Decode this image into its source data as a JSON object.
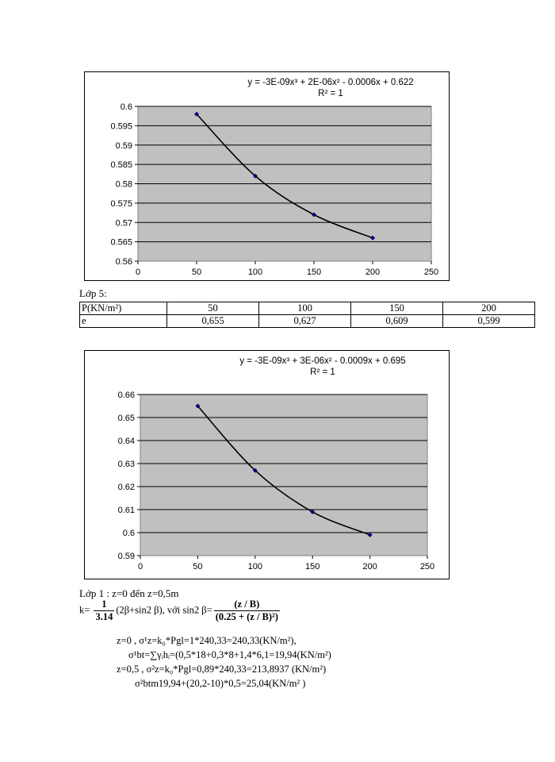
{
  "chart_data": [
    {
      "type": "scatter",
      "trendline": "poly3",
      "x": [
        50,
        100,
        150,
        200
      ],
      "y": [
        0.598,
        0.582,
        0.572,
        0.566
      ],
      "xlim": [
        0,
        250
      ],
      "ylim": [
        0.56,
        0.6
      ],
      "xticks": [
        "0",
        "50",
        "100",
        "150",
        "200",
        "250"
      ],
      "yticks": [
        "0.56",
        "0.565",
        "0.57",
        "0.575",
        "0.58",
        "0.585",
        "0.59",
        "0.595",
        "0.6"
      ],
      "equation": "y = -3E-09x³ + 2E-06x² - 0.0006x + 0.622",
      "r2": "R² = 1",
      "grid": true
    },
    {
      "type": "scatter",
      "trendline": "poly3",
      "x": [
        50,
        100,
        150,
        200
      ],
      "y": [
        0.655,
        0.627,
        0.609,
        0.599
      ],
      "xlim": [
        0,
        250
      ],
      "ylim": [
        0.59,
        0.66
      ],
      "xticks": [
        "0",
        "50",
        "100",
        "150",
        "200",
        "250"
      ],
      "yticks": [
        "0.59",
        "0.6",
        "0.61",
        "0.62",
        "0.63",
        "0.64",
        "0.65",
        "0.66"
      ],
      "equation": "y = -3E-09x³ + 3E-06x² - 0.0009x + 0.695",
      "r2": "R² = 1",
      "grid": true
    }
  ],
  "layer5": {
    "heading": "Lớp 5:",
    "row1_label": "P(KN/m²)",
    "row2_label": "e",
    "p_values": [
      "50",
      "100",
      "150",
      "200"
    ],
    "e_values": [
      "0,655",
      "0,627",
      "0,609",
      "0,599"
    ]
  },
  "layer1": {
    "heading": "Lớp 1 : z=0 đến z=0,5m",
    "k_prefix": "k=",
    "k_num": "1",
    "k_den": "3.14",
    "k_mid": "(2β+sin2 β), với sin2 β=",
    "s_num": "(z / B)",
    "s_den": "(0.25 + (z / B)²)",
    "line1": "z=0 , σ¹z=k₀*Pgl=1*240,33=240,33(KN/m²),",
    "line2": "σ¹bt=∑γᵢhᵢ=(0,5*18+0,3*8+1,4*6,1=19,94(KN/m²)",
    "line3": "z=0,5 , σ²z=k₀*Pgl=0,89*240,33=213,8937 (KN/m²)",
    "line4": "σ²btm19,94+(20,2-10)*0,5=25,04(KN/m² )"
  }
}
